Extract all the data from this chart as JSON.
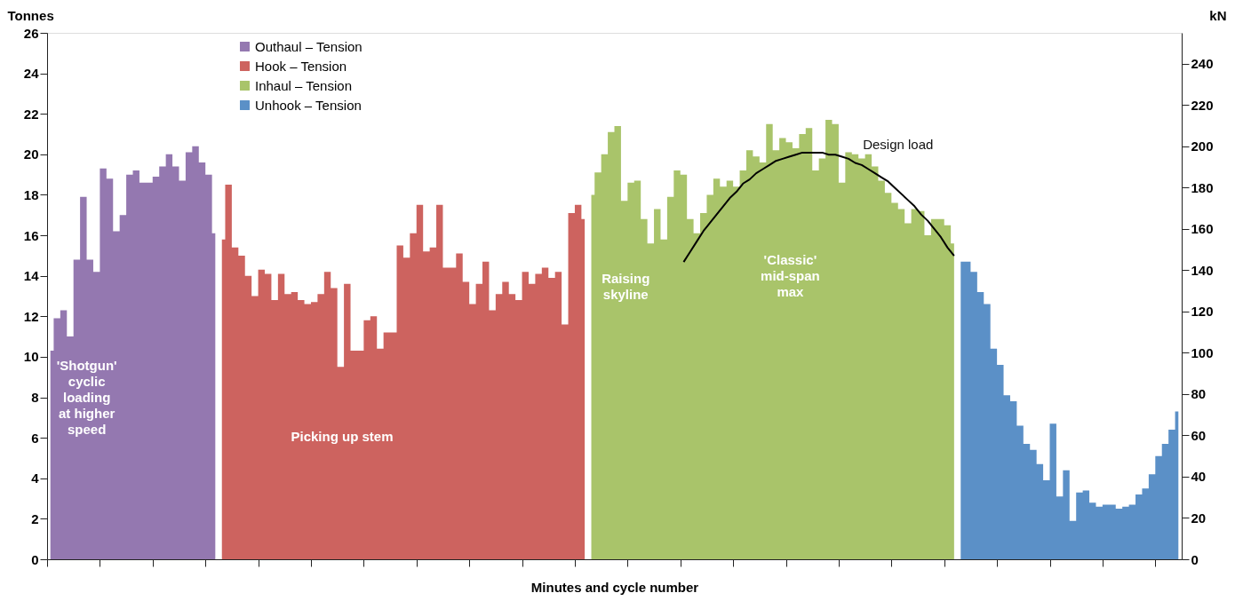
{
  "chart_data": {
    "type": "area",
    "ylabel": "Tonnes",
    "y2label": "kN",
    "xlabel": "Minutes and cycle number",
    "categories": [
      null,
      null,
      null,
      null,
      null,
      null,
      null,
      null,
      null,
      null,
      null,
      null,
      null,
      null,
      null,
      null,
      null,
      null,
      null,
      null,
      null,
      null,
      null,
      null,
      null,
      null,
      null,
      null,
      null,
      null,
      null,
      null,
      null,
      null,
      null,
      null,
      null,
      null,
      null,
      null,
      null,
      null,
      null,
      null,
      null,
      null,
      null,
      null,
      null,
      null,
      null,
      null,
      null,
      null,
      null,
      null,
      null,
      null,
      null,
      null,
      null,
      null,
      null,
      null,
      null,
      null,
      null,
      null,
      null,
      null,
      null,
      null,
      null,
      null,
      null,
      null,
      null,
      null,
      null,
      null,
      null,
      null,
      null,
      null,
      null,
      null,
      null,
      null,
      null,
      null,
      null,
      null,
      null,
      null,
      null,
      null,
      null,
      null,
      null,
      null,
      null,
      null,
      null,
      null,
      null,
      null,
      null,
      null,
      null,
      null,
      null,
      null,
      null,
      null,
      null,
      null,
      null,
      null,
      null,
      null,
      null,
      null,
      null,
      null,
      null,
      null,
      null,
      null,
      null,
      null,
      null,
      null,
      null,
      null,
      null,
      null,
      null,
      null,
      null,
      null,
      null,
      null,
      null,
      null,
      null,
      null,
      null,
      null,
      null,
      null,
      null,
      null,
      null,
      null,
      null,
      null,
      null,
      null,
      null,
      null,
      null,
      null,
      null,
      null,
      null,
      null,
      null,
      null,
      null,
      null,
      null,
      null
    ],
    "ylim": [
      0,
      26
    ],
    "yticks": [
      0,
      2,
      4,
      6,
      8,
      10,
      12,
      14,
      16,
      18,
      20,
      22,
      24,
      26
    ],
    "y2lim": [
      0,
      255
    ],
    "y2ticks": [
      0,
      20,
      40,
      60,
      80,
      100,
      120,
      140,
      160,
      180,
      200,
      220,
      240
    ],
    "grid": false,
    "legend": "top left",
    "series": [
      {
        "name": "Outhaul – Tension",
        "color": "#9478b0",
        "values": [
          10.3,
          11.9,
          12.3,
          11.0,
          14.8,
          17.9,
          14.8,
          14.2,
          19.3,
          18.8,
          16.2,
          17.0,
          19.0,
          19.2,
          18.6,
          18.6,
          18.9,
          19.4,
          20.0,
          19.4,
          18.7,
          20.1,
          20.4,
          19.6,
          19.0,
          16.1,
          null,
          null,
          null,
          null,
          null,
          null,
          null,
          null,
          null,
          null,
          null,
          null,
          null,
          null,
          null,
          null,
          null,
          null,
          null,
          null,
          null,
          null,
          null,
          null,
          null,
          null,
          null,
          null,
          null,
          null,
          null,
          null,
          null,
          null,
          null,
          null,
          null,
          null,
          null,
          null,
          null,
          null,
          null,
          null,
          null,
          null,
          null,
          null,
          null,
          null,
          null,
          null,
          null,
          null,
          null,
          null,
          null,
          null,
          null,
          null,
          null,
          null,
          null,
          null,
          null,
          null,
          null,
          null,
          null,
          null,
          null,
          null,
          null,
          null,
          null,
          null,
          null,
          null,
          null,
          null,
          null,
          null,
          null,
          null,
          null,
          null,
          null,
          null,
          null,
          null,
          null,
          null,
          null,
          null,
          null,
          null,
          null,
          null,
          null,
          null,
          null,
          null,
          null,
          null,
          null,
          null,
          null,
          null,
          null,
          null,
          null,
          null,
          null,
          null,
          null,
          null,
          null,
          null,
          null,
          null,
          null,
          null,
          null,
          null,
          null,
          null,
          null,
          null,
          null,
          null,
          null,
          null,
          null,
          null,
          null,
          null,
          null,
          null,
          null,
          null,
          null,
          null,
          null,
          null,
          null,
          null
        ]
      },
      {
        "name": "Hook – Tension",
        "color": "#cd635f",
        "values": [
          null,
          null,
          null,
          null,
          null,
          null,
          null,
          null,
          null,
          null,
          null,
          null,
          null,
          null,
          null,
          null,
          null,
          null,
          null,
          null,
          null,
          null,
          null,
          null,
          null,
          null,
          15.8,
          18.5,
          15.4,
          15.0,
          14.0,
          13.0,
          14.3,
          14.1,
          12.8,
          14.1,
          13.1,
          13.2,
          12.8,
          12.6,
          12.7,
          13.1,
          14.2,
          13.4,
          9.5,
          13.6,
          10.3,
          10.3,
          11.8,
          12.0,
          10.4,
          11.2,
          11.2,
          15.5,
          14.9,
          16.1,
          17.5,
          15.2,
          15.4,
          17.5,
          14.4,
          14.4,
          15.1,
          13.7,
          12.6,
          13.6,
          14.7,
          12.3,
          13.1,
          13.7,
          13.1,
          12.8,
          14.2,
          13.6,
          14.1,
          14.4,
          13.9,
          14.2,
          11.6,
          17.1,
          17.5,
          16.8,
          null,
          null,
          null,
          null,
          null,
          null,
          null,
          null,
          null,
          null,
          null,
          null,
          null,
          null,
          null,
          null,
          null,
          null,
          null,
          null,
          null,
          null,
          null,
          null,
          null,
          null,
          null,
          null,
          null,
          null,
          null,
          null,
          null,
          null,
          null,
          null,
          null,
          null,
          null,
          null,
          null,
          null,
          null,
          null,
          null,
          null,
          null,
          null,
          null,
          null,
          null,
          null,
          null,
          null,
          null,
          null,
          null,
          null,
          null,
          null,
          null,
          null,
          null,
          null,
          null,
          null,
          null,
          null,
          null,
          null,
          null,
          null,
          null,
          null,
          null,
          null,
          null,
          null,
          null,
          null,
          null,
          null,
          null,
          null,
          null,
          null,
          null,
          null,
          null,
          null
        ]
      },
      {
        "name": "Inhaul – Tension",
        "color": "#a9c46a",
        "values": [
          null,
          null,
          null,
          null,
          null,
          null,
          null,
          null,
          null,
          null,
          null,
          null,
          null,
          null,
          null,
          null,
          null,
          null,
          null,
          null,
          null,
          null,
          null,
          null,
          null,
          null,
          null,
          null,
          null,
          null,
          null,
          null,
          null,
          null,
          null,
          null,
          null,
          null,
          null,
          null,
          null,
          null,
          null,
          null,
          null,
          null,
          null,
          null,
          null,
          null,
          null,
          null,
          null,
          null,
          null,
          null,
          null,
          null,
          null,
          null,
          null,
          null,
          null,
          null,
          null,
          null,
          null,
          null,
          null,
          null,
          null,
          null,
          null,
          null,
          null,
          null,
          null,
          null,
          null,
          null,
          null,
          null,
          18.0,
          19.1,
          20.0,
          21.1,
          21.4,
          17.7,
          18.6,
          18.7,
          16.8,
          15.6,
          17.3,
          15.8,
          17.9,
          19.2,
          19.0,
          16.8,
          16.1,
          17.1,
          18.0,
          18.8,
          18.4,
          18.7,
          18.4,
          19.2,
          20.2,
          19.9,
          19.6,
          21.5,
          20.2,
          20.8,
          20.6,
          20.3,
          21.0,
          21.3,
          19.2,
          19.8,
          21.7,
          21.5,
          18.6,
          20.1,
          20.0,
          19.8,
          20.0,
          19.4,
          18.7,
          18.1,
          17.6,
          17.3,
          16.6,
          17.3,
          17.2,
          16.0,
          16.8,
          16.8,
          16.5,
          15.6,
          null,
          null,
          null,
          null,
          null,
          null,
          null,
          null,
          null,
          null,
          null,
          null,
          null,
          null,
          null,
          null,
          null,
          null,
          null,
          null,
          null,
          null,
          null,
          null,
          null,
          null,
          null,
          null,
          null,
          null,
          null,
          null,
          null,
          null
        ]
      },
      {
        "name": "Unhook – Tension",
        "color": "#5b90c7",
        "values": [
          null,
          null,
          null,
          null,
          null,
          null,
          null,
          null,
          null,
          null,
          null,
          null,
          null,
          null,
          null,
          null,
          null,
          null,
          null,
          null,
          null,
          null,
          null,
          null,
          null,
          null,
          null,
          null,
          null,
          null,
          null,
          null,
          null,
          null,
          null,
          null,
          null,
          null,
          null,
          null,
          null,
          null,
          null,
          null,
          null,
          null,
          null,
          null,
          null,
          null,
          null,
          null,
          null,
          null,
          null,
          null,
          null,
          null,
          null,
          null,
          null,
          null,
          null,
          null,
          null,
          null,
          null,
          null,
          null,
          null,
          null,
          null,
          null,
          null,
          null,
          null,
          null,
          null,
          null,
          null,
          null,
          null,
          null,
          null,
          null,
          null,
          null,
          null,
          null,
          null,
          null,
          null,
          null,
          null,
          null,
          null,
          null,
          null,
          null,
          null,
          null,
          null,
          null,
          null,
          null,
          null,
          null,
          null,
          null,
          null,
          null,
          null,
          null,
          null,
          null,
          null,
          null,
          null,
          null,
          null,
          null,
          null,
          null,
          null,
          null,
          null,
          null,
          null,
          null,
          null,
          null,
          null,
          null,
          null,
          null,
          null,
          null,
          null,
          14.7,
          14.7,
          14.2,
          13.2,
          12.6,
          10.4,
          9.6,
          8.1,
          7.8,
          6.6,
          5.7,
          5.4,
          4.7,
          3.9,
          6.7,
          3.1,
          4.4,
          1.9,
          3.3,
          3.4,
          2.8,
          2.6,
          2.7,
          2.7,
          2.5,
          2.6,
          2.7,
          3.2,
          3.5,
          4.2,
          5.1,
          5.7,
          6.4,
          7.3
        ]
      },
      {
        "type": "line",
        "axis": "y2",
        "color": "#000000",
        "values": [
          null,
          null,
          null,
          null,
          null,
          null,
          null,
          null,
          null,
          null,
          null,
          null,
          null,
          null,
          null,
          null,
          null,
          null,
          null,
          null,
          null,
          null,
          null,
          null,
          null,
          null,
          null,
          null,
          null,
          null,
          null,
          null,
          null,
          null,
          null,
          null,
          null,
          null,
          null,
          null,
          null,
          null,
          null,
          null,
          null,
          null,
          null,
          null,
          null,
          null,
          null,
          null,
          null,
          null,
          null,
          null,
          null,
          null,
          null,
          null,
          null,
          null,
          null,
          null,
          null,
          null,
          null,
          null,
          null,
          null,
          null,
          null,
          null,
          null,
          null,
          null,
          null,
          null,
          null,
          null,
          null,
          null,
          null,
          null,
          null,
          null,
          null,
          null,
          null,
          null,
          null,
          null,
          null,
          null,
          null,
          null,
          144,
          149,
          154,
          159,
          163,
          167,
          171,
          175,
          178,
          182,
          184,
          187,
          189,
          191,
          193,
          194,
          195,
          196,
          197,
          197,
          197,
          197,
          196,
          196,
          195,
          194,
          192,
          191,
          189,
          187,
          185,
          183,
          180,
          177,
          174,
          171,
          167,
          164,
          160,
          156,
          151,
          147,
          null,
          null,
          null,
          null,
          null,
          null,
          null,
          null,
          null,
          null,
          null,
          null,
          null,
          null,
          null,
          null,
          null,
          null,
          null,
          null,
          null,
          null,
          null,
          null,
          null,
          null,
          null,
          null,
          null,
          null,
          null,
          null,
          null,
          null
        ]
      }
    ],
    "annotations": [
      "'Shotgun'\ncyclic\nloading\nat higher\nspeed",
      "Picking up stem",
      "Raising\nskyline",
      "'Classic'\nmid-span\nmax",
      "Design load"
    ]
  }
}
